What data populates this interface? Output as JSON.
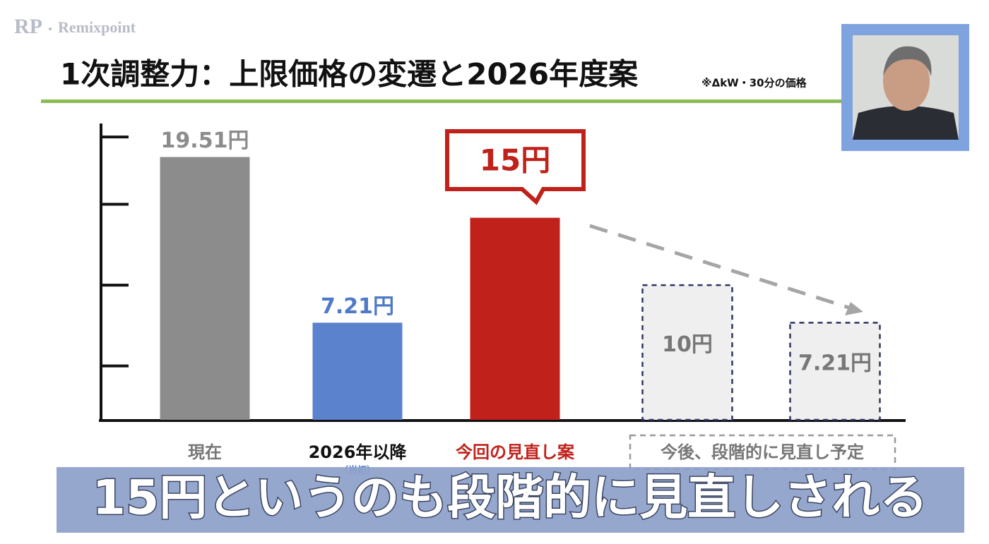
{
  "logo": {
    "mark": "RP",
    "name": "Remixpoint"
  },
  "caption": "15円というのも段階的に見直しされる",
  "chart_data": {
    "type": "bar",
    "title": "1次調整力：上限価格の変遷と2026年度案",
    "note": "※ΔkW・30分の価格",
    "categories": [
      "現在",
      "2026年以降",
      "今回の見直し案",
      null,
      null
    ],
    "category_notes": [
      null,
      "（当初）",
      null,
      null,
      null
    ],
    "group_label": "今後、段階的に見直し予定",
    "values": [
      19.51,
      7.21,
      15,
      10,
      7.21
    ],
    "value_labels": [
      "19.51円",
      "7.21円",
      "15円",
      "10円",
      "7.21円"
    ],
    "colors": [
      "#8c8c8c",
      "#5b82cc",
      "#c0221b",
      "#efefef",
      "#efefef"
    ],
    "dashed": [
      false,
      false,
      false,
      true,
      true
    ],
    "ylim": [
      0,
      22
    ],
    "yticks": [
      4,
      10,
      16,
      21
    ]
  }
}
